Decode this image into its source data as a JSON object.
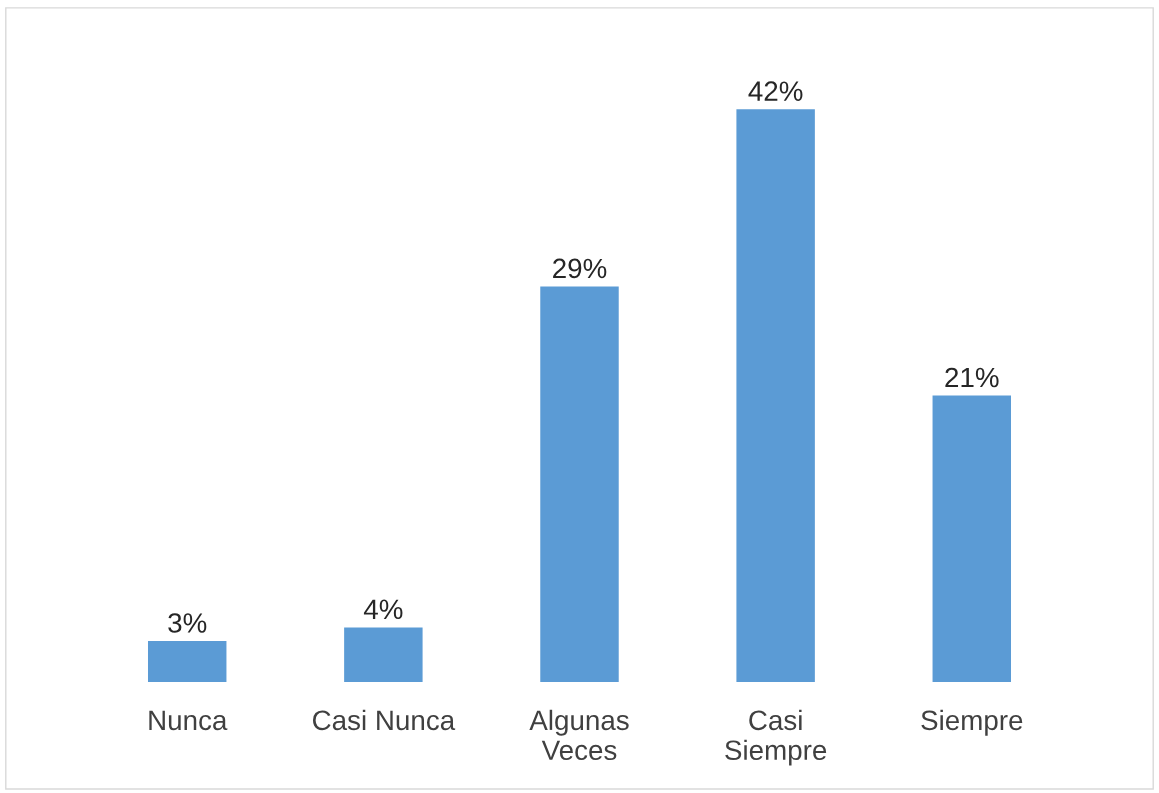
{
  "chart_data": {
    "type": "bar",
    "categories": [
      "Nunca",
      "Casi Nunca",
      "Algunas\nVeces",
      "Casi\nSiempre",
      "Siempre"
    ],
    "values": [
      3,
      4,
      29,
      42,
      21
    ],
    "value_labels": [
      "3%",
      "4%",
      "29%",
      "42%",
      "21%"
    ],
    "color": "#5b9bd5",
    "grid": false,
    "legend": false
  }
}
